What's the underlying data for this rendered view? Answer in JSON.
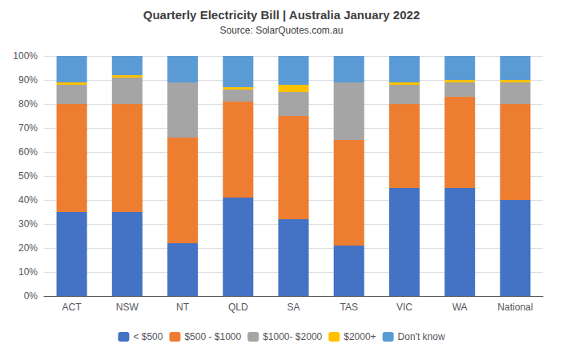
{
  "chart_data": {
    "type": "bar",
    "title": "Quarterly Electricity Bill | Australia January 2022",
    "subtitle": "Source: SolarQuotes.com.au",
    "categories": [
      "ACT",
      "NSW",
      "NT",
      "QLD",
      "SA",
      "TAS",
      "VIC",
      "WA",
      "National"
    ],
    "series": [
      {
        "name": "< $500",
        "color": "#4472C4",
        "values": [
          35,
          35,
          22,
          41,
          32,
          21,
          45,
          45,
          40
        ]
      },
      {
        "name": "$500 - $1000",
        "color": "#ED7D31",
        "values": [
          45,
          45,
          44,
          40,
          43,
          44,
          35,
          38,
          40
        ]
      },
      {
        "name": "$1000- $2000",
        "color": "#A5A5A5",
        "values": [
          8,
          11,
          23,
          5,
          10,
          24,
          8,
          6,
          9
        ]
      },
      {
        "name": "$2000+",
        "color": "#FFC000",
        "values": [
          1,
          1,
          0,
          1,
          3,
          0,
          1,
          1,
          1
        ]
      },
      {
        "name": "Don't know",
        "color": "#5B9BD5",
        "values": [
          11,
          8,
          11,
          13,
          12,
          11,
          11,
          10,
          10
        ]
      }
    ],
    "ylim": [
      0,
      100
    ],
    "yticks": [
      {
        "value": 0,
        "label": "0%"
      },
      {
        "value": 10,
        "label": "10%"
      },
      {
        "value": 20,
        "label": "20%"
      },
      {
        "value": 30,
        "label": "30%"
      },
      {
        "value": 40,
        "label": "40%"
      },
      {
        "value": 50,
        "label": "50%"
      },
      {
        "value": 60,
        "label": "60%"
      },
      {
        "value": 70,
        "label": "70%"
      },
      {
        "value": 80,
        "label": "80%"
      },
      {
        "value": 90,
        "label": "90%"
      },
      {
        "value": 100,
        "label": "100%"
      }
    ],
    "stacked": true,
    "grid": true,
    "legend": "bottom"
  }
}
